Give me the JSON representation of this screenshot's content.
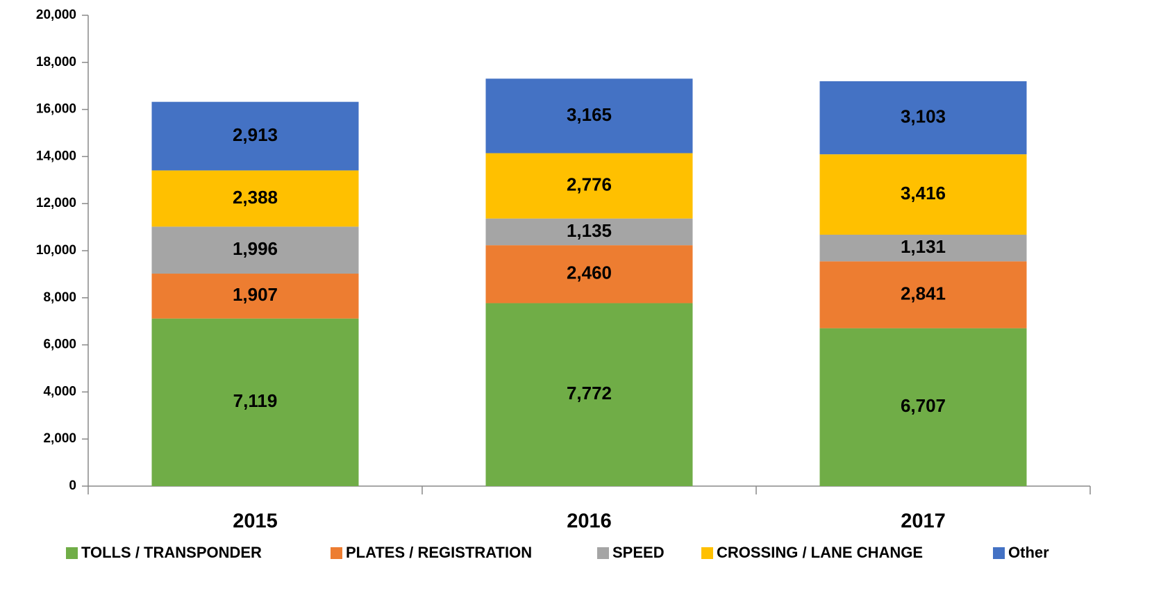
{
  "chart_data": {
    "type": "stacked-bar",
    "categories": [
      "2015",
      "2016",
      "2017"
    ],
    "series": [
      {
        "name": "TOLLS / TRANSPONDER",
        "color": "#70ad47",
        "values": [
          7119,
          7772,
          6707
        ],
        "value_labels": [
          "7,119",
          "7,772",
          "6,707"
        ]
      },
      {
        "name": "PLATES / REGISTRATION",
        "color": "#ed7d31",
        "values": [
          1907,
          2460,
          2841
        ],
        "value_labels": [
          "1,907",
          "2,460",
          "2,841"
        ]
      },
      {
        "name": "SPEED",
        "color": "#a5a5a5",
        "values": [
          1996,
          1135,
          1131
        ],
        "value_labels": [
          "1,996",
          "1,135",
          "1,131"
        ]
      },
      {
        "name": "CROSSING / LANE CHANGE",
        "color": "#ffc000",
        "values": [
          2388,
          2776,
          3416
        ],
        "value_labels": [
          "2,388",
          "2,776",
          "3,416"
        ]
      },
      {
        "name": "Other",
        "color": "#4472c4",
        "values": [
          2913,
          3165,
          3103
        ],
        "value_labels": [
          "2,913",
          "3,165",
          "3,103"
        ]
      }
    ],
    "ylim": [
      0,
      20000
    ],
    "yticks": [
      {
        "value": 0,
        "label": "0"
      },
      {
        "value": 2000,
        "label": "2,000"
      },
      {
        "value": 4000,
        "label": "4,000"
      },
      {
        "value": 6000,
        "label": "6,000"
      },
      {
        "value": 8000,
        "label": "8,000"
      },
      {
        "value": 10000,
        "label": "10,000"
      },
      {
        "value": 12000,
        "label": "12,000"
      },
      {
        "value": 14000,
        "label": "14,000"
      },
      {
        "value": 16000,
        "label": "16,000"
      },
      {
        "value": 18000,
        "label": "18,000"
      },
      {
        "value": 20000,
        "label": "20,000"
      }
    ],
    "grid": false,
    "legend": "bottom"
  }
}
